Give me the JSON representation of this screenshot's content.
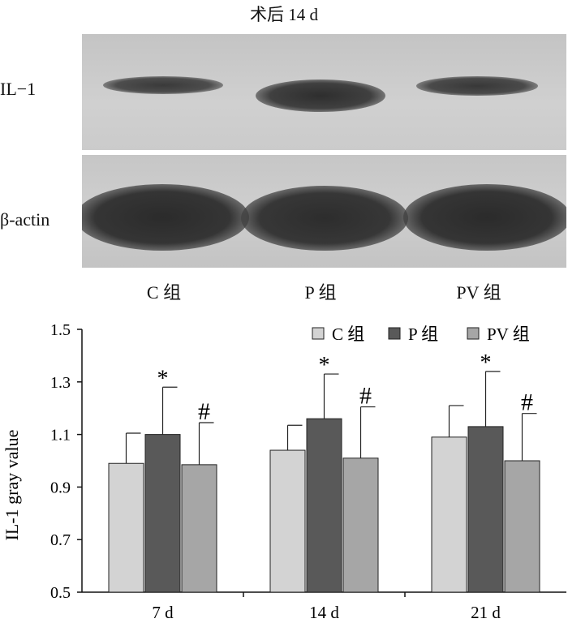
{
  "blot": {
    "title": "术后 14 d",
    "rows": [
      "IL−1",
      "β-actin"
    ],
    "groups": [
      "C 组",
      "P 组",
      "PV 组"
    ]
  },
  "chart_data": {
    "type": "bar",
    "ylabel": "IL-1 gray value",
    "ylim": [
      0.5,
      1.5
    ],
    "yticks": [
      "0.5",
      "0.7",
      "0.9",
      "1.1",
      "1.3",
      "1.5"
    ],
    "categories": [
      "7 d",
      "14 d",
      "21 d"
    ],
    "series": [
      {
        "name": "C 组",
        "color": "#d3d3d3",
        "values": [
          0.99,
          1.04,
          1.09
        ],
        "errors": [
          0.115,
          0.095,
          0.12
        ],
        "markers": [
          "",
          "",
          ""
        ]
      },
      {
        "name": "P 组",
        "color": "#595959",
        "values": [
          1.1,
          1.16,
          1.13
        ],
        "errors": [
          0.18,
          0.17,
          0.21
        ],
        "markers": [
          "*",
          "*",
          "*"
        ]
      },
      {
        "name": "PV 组",
        "color": "#a6a6a6",
        "values": [
          0.985,
          1.01,
          1.0
        ],
        "errors": [
          0.16,
          0.195,
          0.18
        ],
        "markers": [
          "#",
          "#",
          "#"
        ]
      }
    ],
    "legend": "top-right"
  }
}
